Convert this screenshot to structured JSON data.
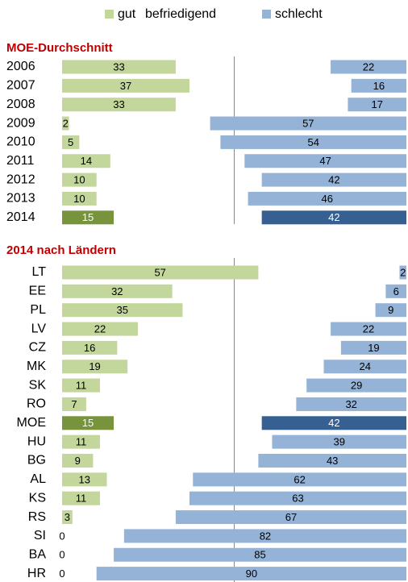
{
  "chart_data": {
    "type": "bar",
    "xlim": [
      0,
      100
    ],
    "xticks": [
      50
    ],
    "legend": [
      {
        "name": "gut",
        "color": "#c3d69b",
        "highlight_color": "#77933c"
      },
      {
        "name": "befriedigend"
      },
      {
        "name": "schlecht",
        "color": "#95b3d7",
        "highlight_color": "#366092"
      }
    ],
    "panels": [
      {
        "title": "MOE-Durchschnitt",
        "categories": [
          "2006",
          "2007",
          "2008",
          "2009",
          "2010",
          "2011",
          "2012",
          "2013",
          "2014"
        ],
        "gut": [
          33,
          37,
          33,
          2,
          5,
          14,
          10,
          10,
          15
        ],
        "schlecht": [
          22,
          16,
          17,
          57,
          54,
          47,
          42,
          46,
          42
        ],
        "highlight": 8
      },
      {
        "title": "2014 nach Ländern",
        "categories": [
          "LT",
          "EE",
          "PL",
          "LV",
          "CZ",
          "MK",
          "SK",
          "RO",
          "MOE",
          "HU",
          "BG",
          "AL",
          "KS",
          "RS",
          "SI",
          "BA",
          "HR"
        ],
        "gut": [
          57,
          32,
          35,
          22,
          16,
          19,
          11,
          7,
          15,
          11,
          9,
          13,
          11,
          3,
          0,
          0,
          0
        ],
        "schlecht": [
          2,
          6,
          9,
          22,
          19,
          24,
          29,
          32,
          42,
          39,
          43,
          62,
          63,
          67,
          82,
          85,
          90
        ],
        "highlight": 8
      }
    ]
  }
}
